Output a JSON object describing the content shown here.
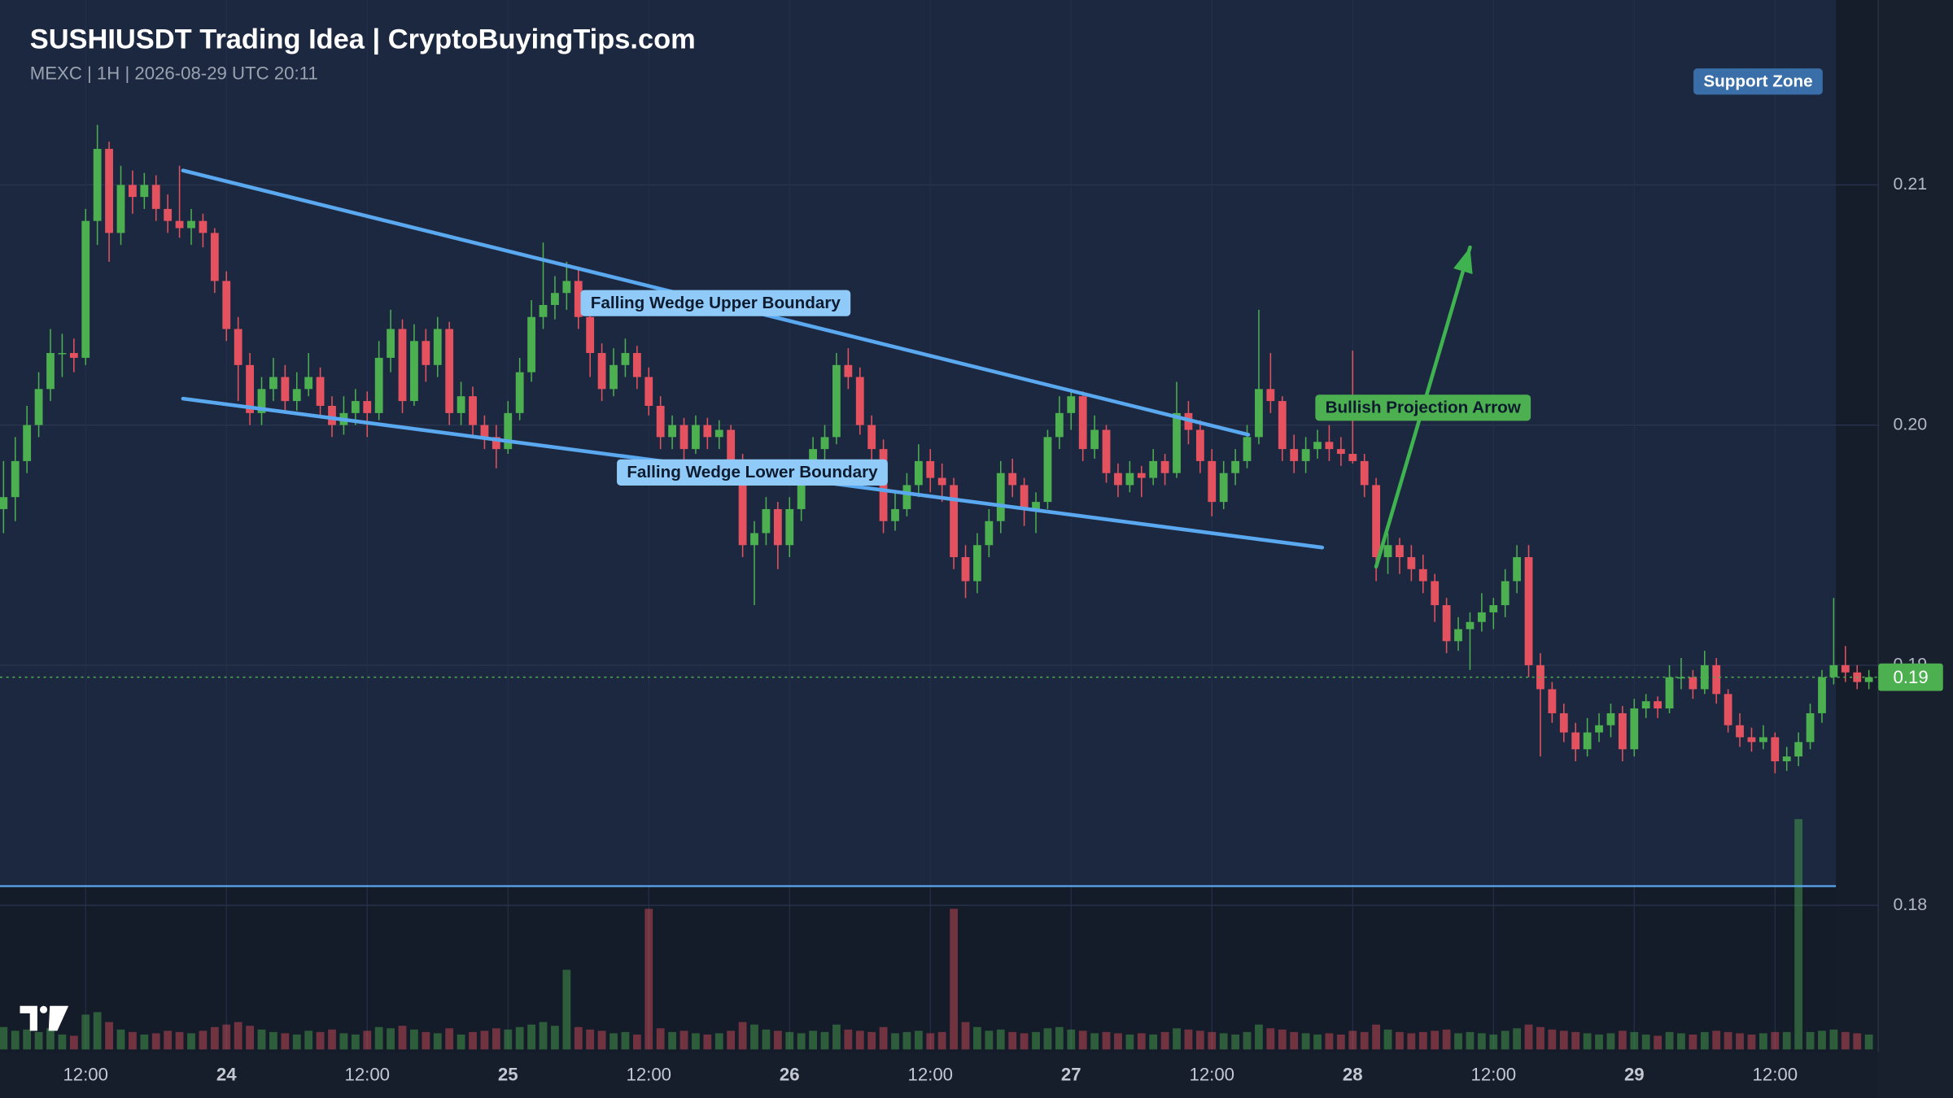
{
  "chart_data": {
    "type": "candlestick",
    "title": "SUSHIUSDT Trading Idea | CryptoBuyingTips.com",
    "subtitle": "MEXC | 1H | 2026-08-29 UTC 20:11",
    "up_color": "#4caf50",
    "down_color": "#e5525f",
    "grid": true,
    "xlim": [
      4.7,
      164.8
    ],
    "xticks": [
      {
        "value": 12,
        "label": "12:00"
      },
      24,
      {
        "value": 36,
        "label": "12:00"
      },
      {
        "value": 48,
        "label": "25"
      },
      {
        "value": 60,
        "label": "12:00"
      },
      {
        "value": 72,
        "label": "26"
      },
      {
        "value": 84,
        "label": "12:00"
      },
      {
        "value": 96,
        "label": "27"
      },
      {
        "value": 108,
        "label": "12:00"
      },
      {
        "value": 120,
        "label": "28"
      },
      {
        "value": 132,
        "label": "12:00"
      },
      {
        "value": 144,
        "label": "29"
      },
      {
        "value": 156,
        "label": "12:00"
      }
    ],
    "ylim": [
      0.174,
      0.2177
    ],
    "yticks": [
      0.18,
      0.19,
      {
        "value": 0.2,
        "label": "0.20"
      },
      0.21
    ],
    "candles": [
      [
        5,
        0.1965,
        0.1985,
        0.1955,
        0.197,
        18
      ],
      [
        6,
        0.197,
        0.1995,
        0.196,
        0.1985,
        15
      ],
      [
        7,
        0.1985,
        0.2008,
        0.198,
        0.2,
        16
      ],
      [
        8,
        0.2,
        0.2022,
        0.1995,
        0.2015,
        14
      ],
      [
        9,
        0.2015,
        0.204,
        0.201,
        0.203,
        17
      ],
      [
        10,
        0.203,
        0.2038,
        0.202,
        0.203,
        12
      ],
      [
        11,
        0.203,
        0.2036,
        0.2022,
        0.2028,
        11
      ],
      [
        12,
        0.2028,
        0.209,
        0.2025,
        0.2085,
        28
      ],
      [
        13,
        0.2085,
        0.2125,
        0.2075,
        0.2115,
        30
      ],
      [
        14,
        0.2115,
        0.2118,
        0.2068,
        0.208,
        22
      ],
      [
        15,
        0.208,
        0.2108,
        0.2075,
        0.21,
        16
      ],
      [
        16,
        0.21,
        0.2106,
        0.2088,
        0.2095,
        14
      ],
      [
        17,
        0.2095,
        0.2105,
        0.209,
        0.21,
        12
      ],
      [
        18,
        0.21,
        0.2104,
        0.2085,
        0.209,
        13
      ],
      [
        19,
        0.209,
        0.2096,
        0.208,
        0.2085,
        15
      ],
      [
        20,
        0.2085,
        0.2108,
        0.2078,
        0.2082,
        14
      ],
      [
        21,
        0.2082,
        0.209,
        0.2075,
        0.2085,
        13
      ],
      [
        22,
        0.2085,
        0.2088,
        0.2074,
        0.208,
        15
      ],
      [
        23,
        0.208,
        0.2082,
        0.2055,
        0.206,
        18
      ],
      [
        24,
        0.206,
        0.2064,
        0.2035,
        0.204,
        20
      ],
      [
        25,
        0.204,
        0.2045,
        0.201,
        0.2025,
        22
      ],
      [
        26,
        0.2025,
        0.203,
        0.2,
        0.2005,
        19
      ],
      [
        27,
        0.2005,
        0.202,
        0.2,
        0.2015,
        16
      ],
      [
        28,
        0.2015,
        0.2028,
        0.201,
        0.202,
        14
      ],
      [
        29,
        0.202,
        0.2025,
        0.2005,
        0.201,
        13
      ],
      [
        30,
        0.201,
        0.2022,
        0.2006,
        0.2015,
        12
      ],
      [
        31,
        0.2015,
        0.203,
        0.2012,
        0.202,
        15
      ],
      [
        32,
        0.202,
        0.2024,
        0.2003,
        0.2008,
        14
      ],
      [
        33,
        0.2008,
        0.2012,
        0.1995,
        0.2,
        16
      ],
      [
        34,
        0.2,
        0.2012,
        0.1996,
        0.2005,
        13
      ],
      [
        35,
        0.2005,
        0.2015,
        0.2,
        0.201,
        12
      ],
      [
        36,
        0.201,
        0.2014,
        0.1995,
        0.2005,
        15
      ],
      [
        37,
        0.2005,
        0.2035,
        0.2002,
        0.2028,
        18
      ],
      [
        38,
        0.2028,
        0.2048,
        0.2022,
        0.204,
        17
      ],
      [
        39,
        0.204,
        0.2044,
        0.2005,
        0.201,
        19
      ],
      [
        40,
        0.201,
        0.2042,
        0.2008,
        0.2035,
        16
      ],
      [
        41,
        0.2035,
        0.204,
        0.2018,
        0.2025,
        14
      ],
      [
        42,
        0.2025,
        0.2045,
        0.202,
        0.204,
        13
      ],
      [
        43,
        0.204,
        0.2043,
        0.2,
        0.2005,
        17
      ],
      [
        44,
        0.2005,
        0.2018,
        0.2,
        0.2012,
        12
      ],
      [
        45,
        0.2012,
        0.2016,
        0.1996,
        0.2,
        14
      ],
      [
        46,
        0.2,
        0.2004,
        0.199,
        0.1995,
        15
      ],
      [
        47,
        0.1995,
        0.2,
        0.1982,
        0.199,
        17
      ],
      [
        48,
        0.199,
        0.201,
        0.1988,
        0.2005,
        16
      ],
      [
        49,
        0.2005,
        0.2028,
        0.2002,
        0.2022,
        18
      ],
      [
        50,
        0.2022,
        0.2052,
        0.2018,
        0.2045,
        20
      ],
      [
        51,
        0.2045,
        0.2076,
        0.204,
        0.205,
        22
      ],
      [
        52,
        0.205,
        0.2062,
        0.2044,
        0.2055,
        19
      ],
      [
        53,
        0.2055,
        0.2068,
        0.2048,
        0.206,
        64
      ],
      [
        54,
        0.206,
        0.2066,
        0.204,
        0.2045,
        18
      ],
      [
        55,
        0.2045,
        0.205,
        0.202,
        0.203,
        16
      ],
      [
        56,
        0.203,
        0.2034,
        0.201,
        0.2015,
        15
      ],
      [
        57,
        0.2015,
        0.2032,
        0.2012,
        0.2025,
        13
      ],
      [
        58,
        0.2025,
        0.2036,
        0.202,
        0.203,
        14
      ],
      [
        59,
        0.203,
        0.2033,
        0.2015,
        0.202,
        12
      ],
      [
        60,
        0.202,
        0.2024,
        0.2004,
        0.2008,
        113
      ],
      [
        61,
        0.2008,
        0.2012,
        0.199,
        0.1995,
        17
      ],
      [
        62,
        0.1995,
        0.2004,
        0.199,
        0.2,
        14
      ],
      [
        63,
        0.2,
        0.2003,
        0.1985,
        0.199,
        15
      ],
      [
        64,
        0.199,
        0.2004,
        0.1988,
        0.2,
        13
      ],
      [
        65,
        0.2,
        0.2003,
        0.199,
        0.1995,
        12
      ],
      [
        66,
        0.1995,
        0.2002,
        0.199,
        0.1998,
        13
      ],
      [
        67,
        0.1998,
        0.2,
        0.198,
        0.1985,
        15
      ],
      [
        68,
        0.1985,
        0.1988,
        0.1945,
        0.195,
        22
      ],
      [
        69,
        0.195,
        0.196,
        0.1925,
        0.1955,
        20
      ],
      [
        70,
        0.1955,
        0.197,
        0.195,
        0.1965,
        16
      ],
      [
        71,
        0.1965,
        0.1968,
        0.194,
        0.195,
        15
      ],
      [
        72,
        0.195,
        0.197,
        0.1945,
        0.1965,
        14
      ],
      [
        73,
        0.1965,
        0.1984,
        0.196,
        0.198,
        13
      ],
      [
        74,
        0.198,
        0.1995,
        0.1976,
        0.199,
        15
      ],
      [
        75,
        0.199,
        0.2,
        0.1985,
        0.1995,
        14
      ],
      [
        76,
        0.1995,
        0.203,
        0.1992,
        0.2025,
        20
      ],
      [
        77,
        0.2025,
        0.2032,
        0.2015,
        0.202,
        16
      ],
      [
        78,
        0.202,
        0.2024,
        0.1996,
        0.2,
        15
      ],
      [
        79,
        0.2,
        0.2004,
        0.1985,
        0.199,
        14
      ],
      [
        80,
        0.199,
        0.1994,
        0.1955,
        0.196,
        18
      ],
      [
        81,
        0.196,
        0.1972,
        0.1956,
        0.1965,
        13
      ],
      [
        82,
        0.1965,
        0.198,
        0.1962,
        0.1975,
        14
      ],
      [
        83,
        0.1975,
        0.1992,
        0.197,
        0.1985,
        15
      ],
      [
        84,
        0.1985,
        0.199,
        0.1972,
        0.1978,
        13
      ],
      [
        85,
        0.1978,
        0.1984,
        0.1968,
        0.1975,
        14
      ],
      [
        86,
        0.1975,
        0.1978,
        0.194,
        0.1945,
        113
      ],
      [
        87,
        0.1945,
        0.195,
        0.1928,
        0.1935,
        22
      ],
      [
        88,
        0.1935,
        0.1955,
        0.193,
        0.195,
        18
      ],
      [
        89,
        0.195,
        0.1965,
        0.1945,
        0.196,
        15
      ],
      [
        90,
        0.196,
        0.1985,
        0.1955,
        0.198,
        16
      ],
      [
        91,
        0.198,
        0.1986,
        0.197,
        0.1975,
        14
      ],
      [
        92,
        0.1975,
        0.1978,
        0.1958,
        0.1965,
        13
      ],
      [
        93,
        0.1965,
        0.1972,
        0.1955,
        0.1968,
        14
      ],
      [
        94,
        0.1968,
        0.1998,
        0.1965,
        0.1995,
        17
      ],
      [
        95,
        0.1995,
        0.2012,
        0.199,
        0.2005,
        18
      ],
      [
        96,
        0.2005,
        0.2015,
        0.1998,
        0.2012,
        16
      ],
      [
        97,
        0.2012,
        0.2014,
        0.1985,
        0.199,
        15
      ],
      [
        98,
        0.199,
        0.2004,
        0.1986,
        0.1998,
        13
      ],
      [
        99,
        0.1998,
        0.2,
        0.1976,
        0.198,
        14
      ],
      [
        100,
        0.198,
        0.1984,
        0.197,
        0.1975,
        13
      ],
      [
        101,
        0.1975,
        0.1985,
        0.1972,
        0.198,
        12
      ],
      [
        102,
        0.198,
        0.1983,
        0.197,
        0.1978,
        13
      ],
      [
        103,
        0.1978,
        0.199,
        0.1975,
        0.1985,
        12
      ],
      [
        104,
        0.1985,
        0.1988,
        0.1975,
        0.198,
        14
      ],
      [
        105,
        0.198,
        0.2018,
        0.1978,
        0.2005,
        17
      ],
      [
        106,
        0.2005,
        0.201,
        0.1992,
        0.1998,
        16
      ],
      [
        107,
        0.1998,
        0.2002,
        0.198,
        0.1985,
        15
      ],
      [
        108,
        0.1985,
        0.199,
        0.1962,
        0.1968,
        14
      ],
      [
        109,
        0.1968,
        0.1985,
        0.1965,
        0.198,
        13
      ],
      [
        110,
        0.198,
        0.199,
        0.1975,
        0.1985,
        12
      ],
      [
        111,
        0.1985,
        0.2,
        0.1982,
        0.1995,
        14
      ],
      [
        112,
        0.1995,
        0.2048,
        0.1992,
        0.2015,
        20
      ],
      [
        113,
        0.2015,
        0.203,
        0.2005,
        0.201,
        17
      ],
      [
        114,
        0.201,
        0.2012,
        0.1985,
        0.199,
        16
      ],
      [
        115,
        0.199,
        0.1996,
        0.198,
        0.1985,
        14
      ],
      [
        116,
        0.1985,
        0.1995,
        0.198,
        0.199,
        13
      ],
      [
        117,
        0.199,
        0.1998,
        0.1986,
        0.1993,
        12
      ],
      [
        118,
        0.1993,
        0.2,
        0.1985,
        0.199,
        13
      ],
      [
        119,
        0.199,
        0.1995,
        0.1983,
        0.1988,
        12
      ],
      [
        120,
        0.1988,
        0.2031,
        0.1984,
        0.1985,
        15
      ],
      [
        121,
        0.1985,
        0.1988,
        0.197,
        0.1975,
        14
      ],
      [
        122,
        0.1975,
        0.1978,
        0.1935,
        0.1945,
        20
      ],
      [
        123,
        0.1945,
        0.1955,
        0.1938,
        0.195,
        16
      ],
      [
        124,
        0.195,
        0.1953,
        0.1938,
        0.1945,
        14
      ],
      [
        125,
        0.1945,
        0.195,
        0.1935,
        0.194,
        13
      ],
      [
        126,
        0.194,
        0.1946,
        0.193,
        0.1935,
        14
      ],
      [
        127,
        0.1935,
        0.1938,
        0.1918,
        0.1925,
        15
      ],
      [
        128,
        0.1925,
        0.1928,
        0.1905,
        0.191,
        16
      ],
      [
        129,
        0.191,
        0.192,
        0.1906,
        0.1915,
        13
      ],
      [
        130,
        0.1915,
        0.1922,
        0.1898,
        0.1918,
        14
      ],
      [
        131,
        0.1918,
        0.193,
        0.1914,
        0.1922,
        13
      ],
      [
        132,
        0.1922,
        0.1928,
        0.1915,
        0.1925,
        12
      ],
      [
        133,
        0.1925,
        0.194,
        0.192,
        0.1935,
        15
      ],
      [
        134,
        0.1935,
        0.195,
        0.193,
        0.1945,
        17
      ],
      [
        135,
        0.1945,
        0.195,
        0.1895,
        0.19,
        20
      ],
      [
        136,
        0.19,
        0.1905,
        0.1862,
        0.189,
        18
      ],
      [
        137,
        0.189,
        0.1893,
        0.1876,
        0.188,
        16
      ],
      [
        138,
        0.188,
        0.1884,
        0.1868,
        0.1872,
        15
      ],
      [
        139,
        0.1872,
        0.1876,
        0.186,
        0.1865,
        14
      ],
      [
        140,
        0.1865,
        0.1878,
        0.1862,
        0.1872,
        13
      ],
      [
        141,
        0.1872,
        0.188,
        0.1868,
        0.1875,
        12
      ],
      [
        142,
        0.1875,
        0.1884,
        0.187,
        0.188,
        13
      ],
      [
        143,
        0.188,
        0.1883,
        0.186,
        0.1865,
        15
      ],
      [
        144,
        0.1865,
        0.1886,
        0.1862,
        0.1882,
        14
      ],
      [
        145,
        0.1882,
        0.1888,
        0.1878,
        0.1885,
        12
      ],
      [
        146,
        0.1885,
        0.1887,
        0.1878,
        0.1882,
        11
      ],
      [
        147,
        0.1882,
        0.19,
        0.188,
        0.1895,
        14
      ],
      [
        148,
        0.1895,
        0.1903,
        0.189,
        0.1895,
        13
      ],
      [
        149,
        0.1895,
        0.1898,
        0.1886,
        0.189,
        12
      ],
      [
        150,
        0.189,
        0.1906,
        0.1888,
        0.19,
        14
      ],
      [
        151,
        0.19,
        0.1903,
        0.1884,
        0.1888,
        15
      ],
      [
        152,
        0.1888,
        0.189,
        0.1872,
        0.1875,
        14
      ],
      [
        153,
        0.1875,
        0.188,
        0.1866,
        0.187,
        13
      ],
      [
        154,
        0.187,
        0.1874,
        0.1864,
        0.1868,
        12
      ],
      [
        155,
        0.1868,
        0.1875,
        0.1865,
        0.187,
        13
      ],
      [
        156,
        0.187,
        0.1872,
        0.1855,
        0.186,
        14
      ],
      [
        157,
        0.186,
        0.1866,
        0.1856,
        0.1862,
        14
      ],
      [
        158,
        0.1862,
        0.1872,
        0.1858,
        0.1868,
        185
      ],
      [
        159,
        0.1868,
        0.1884,
        0.1865,
        0.188,
        14
      ],
      [
        160,
        0.188,
        0.1898,
        0.1876,
        0.1895,
        15
      ],
      [
        161,
        0.1895,
        0.1928,
        0.1892,
        0.19,
        16
      ],
      [
        162,
        0.19,
        0.1908,
        0.1893,
        0.1897,
        14
      ],
      [
        163,
        0.1897,
        0.19,
        0.189,
        0.1893,
        13
      ],
      [
        164,
        0.1893,
        0.1898,
        0.189,
        0.1895,
        12
      ]
    ],
    "last_price": {
      "value": 0.1895,
      "label": "0.19"
    },
    "annotations": [
      {
        "type": "trendline",
        "label": "Falling Wedge Upper Boundary",
        "color": "#5aa9f0",
        "box_color": "#90caf9",
        "text_color": "#0d1b2e",
        "points": [
          [
            20.3,
            0.2106
          ],
          [
            111.1,
            0.1996
          ]
        ]
      },
      {
        "type": "trendline",
        "label": "Falling Wedge Lower Boundary",
        "color": "#5aa9f0",
        "box_color": "#90caf9",
        "text_color": "#0d1b2e",
        "points": [
          [
            20.3,
            0.2011
          ],
          [
            117.4,
            0.1949
          ]
        ]
      },
      {
        "type": "arrow",
        "label": "Bullish Projection Arrow",
        "color": "#3fb34f",
        "box_color": "#4caf50",
        "text_color": "#0d1b2e",
        "points": [
          [
            122,
            0.1941
          ],
          [
            130,
            0.2074
          ]
        ]
      },
      {
        "type": "hline",
        "label": "Support Zone",
        "color": "#5aa9f0",
        "box_color": "#3a6ea8",
        "text_color": "#ffffff",
        "value": 0.1808
      }
    ]
  }
}
